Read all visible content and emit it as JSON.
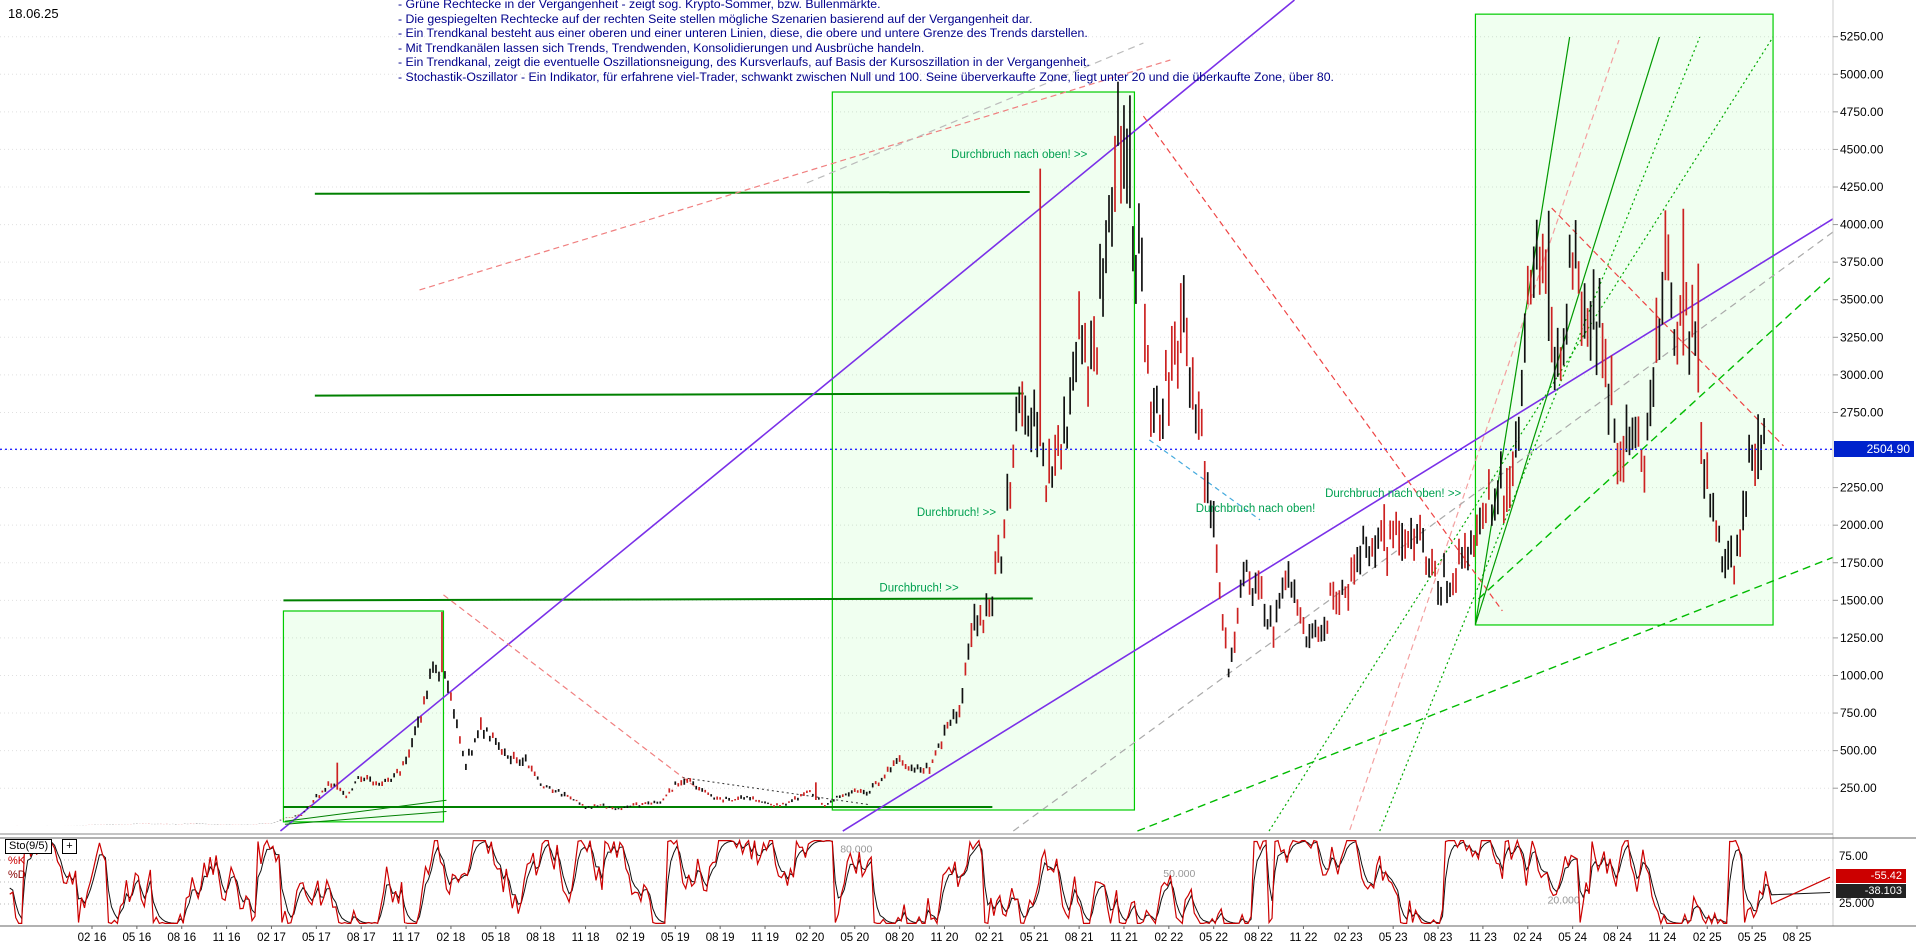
{
  "meta": {
    "date_label": "18.06.25"
  },
  "colors": {
    "annotation_text": "#00008b",
    "bull_rect_border": "#00cc00",
    "trend_violet": "#7a30e8",
    "trend_red": "#ee4444",
    "trend_green": "#00bb00",
    "current_price_line": "#2a2aff",
    "current_price_badge_bg": "#0022cc",
    "oscillator_k": "#cc0000",
    "oscillator_d": "#111111"
  },
  "annotations": {
    "lines": [
      "- Grüne Rechtecke in der Vergangenheit - zeigt sog. Krypto-Sommer, bzw. Bullenmärkte.",
      "- Die gespiegelten Rechtecke auf der rechten Seite stellen mögliche Szenarien basierend auf der Vergangenheit dar.",
      "- Ein Trendkanal besteht aus einer oberen und einer unteren Linien, diese, die obere und untere Grenze des Trends darstellen.",
      "- Mit Trendkanälen lassen sich Trends, Trendwenden, Konsolidierungen und Ausbrüche handeln.",
      "- Ein Trendkanal, zeigt die eventuelle Oszillationsneigung, des Kursverlaufs, auf Basis der Kursoszillation in der Vergangenheit.",
      "- Stochastik-Oszillator - Ein Indikator, für erfahrene viel-Trader, schwankt zwischen Null und 100. Seine überverkaufte Zone, liegt unter 20 und die überkaufte Zone, über 80."
    ]
  },
  "price_axis": {
    "ticks": [
      "5250.00",
      "5000.00",
      "4750.00",
      "4500.00",
      "4250.00",
      "4000.00",
      "3750.00",
      "3500.00",
      "3250.00",
      "3000.00",
      "2750.00",
      "2250.00",
      "2000.00",
      "1750.00",
      "1500.00",
      "1250.00",
      "1000.00",
      "750.00",
      "500.00",
      "250.00"
    ]
  },
  "current_price": {
    "value": "2504.90",
    "number": 2504.9
  },
  "x_axis": {
    "labels": [
      "02 16",
      "05 16",
      "08 16",
      "11 16",
      "02 17",
      "05 17",
      "08 17",
      "11 17",
      "02 18",
      "05 18",
      "08 18",
      "11 18",
      "02 19",
      "05 19",
      "08 19",
      "11 19",
      "02 20",
      "05 20",
      "08 20",
      "11 20",
      "02 21",
      "05 21",
      "08 21",
      "11 21",
      "02 22",
      "05 22",
      "08 22",
      "11 22",
      "02 23",
      "05 23",
      "08 23",
      "11 23",
      "02 24",
      "05 24",
      "08 24",
      "11 24",
      "02 25",
      "05 25",
      "08 25"
    ]
  },
  "oscillator": {
    "name": "Sto(9/5)",
    "plus_label": "+",
    "k_label": "%K",
    "d_label": "%D",
    "right_top_label": "75.00",
    "right_bottom_label": "25.000",
    "k_value": "-55.42",
    "d_value": "-38.103",
    "k_value_number": 55.42,
    "d_value_number": 38.103,
    "levels": [
      75,
      50,
      25
    ],
    "inline_labels": [
      {
        "text": "80.000",
        "m": 51.1,
        "v": 80
      },
      {
        "text": "50.000",
        "m": 72.7,
        "v": 52
      },
      {
        "text": "20.000",
        "m": 98.4,
        "v": 22
      }
    ]
  },
  "chart_data": {
    "type": "candlestick",
    "title": "",
    "x_unit": "month",
    "ylim": [
      -60,
      5400
    ],
    "y_tick_step": 250,
    "grid": "horizontal-dotted",
    "current_value": 2504.9,
    "series": [
      {
        "name": "price-monthly-approx",
        "points": [
          [
            "2015-09",
            1.3
          ],
          [
            "2015-10",
            0.6
          ],
          [
            "2015-11",
            0.9
          ],
          [
            "2015-12",
            0.9
          ],
          [
            "2016-01",
            2.3
          ],
          [
            "2016-02",
            6.2
          ],
          [
            "2016-03",
            11.2
          ],
          [
            "2016-04",
            8.8
          ],
          [
            "2016-05",
            12.5
          ],
          [
            "2016-06",
            12.1
          ],
          [
            "2016-07",
            11.6
          ],
          [
            "2016-08",
            11.2
          ],
          [
            "2016-09",
            13.1
          ],
          [
            "2016-10",
            10.9
          ],
          [
            "2016-11",
            9.6
          ],
          [
            "2016-12",
            8.2
          ],
          [
            "2017-01",
            10.7
          ],
          [
            "2017-02",
            15.4
          ],
          [
            "2017-03",
            49.8
          ],
          [
            "2017-04",
            70.3
          ],
          [
            "2017-05",
            190
          ],
          [
            "2017-06",
            283
          ],
          [
            "2017-07",
            203
          ],
          [
            "2017-08",
            330
          ],
          [
            "2017-09",
            290
          ],
          [
            "2017-10",
            303
          ],
          [
            "2017-11",
            427
          ],
          [
            "2017-12",
            720
          ],
          [
            "2018-01",
            1105
          ],
          [
            "2018-02",
            855
          ],
          [
            "2018-03",
            400
          ],
          [
            "2018-04",
            660
          ],
          [
            "2018-05",
            580
          ],
          [
            "2018-06",
            450
          ],
          [
            "2018-07",
            430
          ],
          [
            "2018-08",
            283
          ],
          [
            "2018-09",
            231
          ],
          [
            "2018-10",
            198
          ],
          [
            "2018-11",
            118
          ],
          [
            "2018-12",
            140
          ],
          [
            "2019-01",
            108
          ],
          [
            "2019-02",
            136
          ],
          [
            "2019-03",
            141
          ],
          [
            "2019-04",
            162
          ],
          [
            "2019-05",
            267
          ],
          [
            "2019-06",
            290
          ],
          [
            "2019-07",
            218
          ],
          [
            "2019-08",
            172
          ],
          [
            "2019-09",
            180
          ],
          [
            "2019-10",
            182
          ],
          [
            "2019-11",
            152
          ],
          [
            "2019-12",
            130
          ],
          [
            "2020-01",
            180
          ],
          [
            "2020-02",
            224
          ],
          [
            "2020-03",
            134
          ],
          [
            "2020-04",
            206
          ],
          [
            "2020-05",
            231
          ],
          [
            "2020-06",
            226
          ],
          [
            "2020-07",
            346
          ],
          [
            "2020-08",
            428
          ],
          [
            "2020-09",
            359
          ],
          [
            "2020-10",
            386
          ],
          [
            "2020-11",
            602
          ],
          [
            "2020-12",
            737
          ],
          [
            "2021-01",
            1312
          ],
          [
            "2021-02",
            1418
          ],
          [
            "2021-03",
            1919
          ],
          [
            "2021-04",
            2772
          ],
          [
            "2021-05",
            2707
          ],
          [
            "2021-06",
            2274
          ],
          [
            "2021-07",
            2531
          ],
          [
            "2021-08",
            3433
          ],
          [
            "2021-09",
            3001
          ],
          [
            "2021-10",
            4288
          ],
          [
            "2021-11",
            4631
          ],
          [
            "2021-12",
            3683
          ],
          [
            "2022-01",
            2688
          ],
          [
            "2022-02",
            2919
          ],
          [
            "2022-03",
            3281
          ],
          [
            "2022-04",
            2729
          ],
          [
            "2022-05",
            1942
          ],
          [
            "2022-06",
            1067
          ],
          [
            "2022-07",
            1681
          ],
          [
            "2022-08",
            1554
          ],
          [
            "2022-09",
            1328
          ],
          [
            "2022-10",
            1572
          ],
          [
            "2022-11",
            1294
          ],
          [
            "2022-12",
            1196
          ],
          [
            "2023-01",
            1586
          ],
          [
            "2023-02",
            1606
          ],
          [
            "2023-03",
            1822
          ],
          [
            "2023-04",
            1871
          ],
          [
            "2023-05",
            1874
          ],
          [
            "2023-06",
            1934
          ],
          [
            "2023-07",
            1856
          ],
          [
            "2023-08",
            1652
          ],
          [
            "2023-09",
            1671
          ],
          [
            "2023-10",
            1812
          ],
          [
            "2023-11",
            2052
          ],
          [
            "2023-12",
            2281
          ],
          [
            "2024-01",
            2283
          ],
          [
            "2024-02",
            3385
          ],
          [
            "2024-03",
            3647
          ],
          [
            "2024-04",
            3014
          ],
          [
            "2024-05",
            3762
          ],
          [
            "2024-06",
            3438
          ],
          [
            "2024-07",
            3232
          ],
          [
            "2024-08",
            2513
          ],
          [
            "2024-09",
            2602
          ],
          [
            "2024-10",
            2512
          ],
          [
            "2024-11",
            3703
          ],
          [
            "2024-12",
            3336
          ],
          [
            "2025-01",
            3300
          ],
          [
            "2025-02",
            2237
          ],
          [
            "2025-03",
            1823
          ],
          [
            "2025-04",
            1794
          ],
          [
            "2025-05",
            2529
          ],
          [
            "2025-06",
            2505
          ]
        ]
      }
    ],
    "monthly_high_overrides": {
      "2017-06": 420,
      "2017-12": 760,
      "2018-01": 1423,
      "2020-02": 289,
      "2021-05": 4372,
      "2021-11": 4860,
      "2023-04": 2140,
      "2024-03": 4092,
      "2024-12": 4105,
      "2025-01": 3740,
      "2025-05": 2738
    },
    "overlays": {
      "rectangles": [
        {
          "id": "bull-market-2017",
          "m1": 12.8,
          "p1": 26,
          "m2": 23.5,
          "p2": 1429
        },
        {
          "id": "bull-market-2020-21",
          "m1": 49.5,
          "p1": 105,
          "m2": 69.7,
          "p2": 4882
        },
        {
          "id": "mirrored-scenario-right",
          "m1": 92.5,
          "p1": 1336,
          "m2": 112.4,
          "p2": 5400
        }
      ],
      "trend_lines": [
        {
          "id": "support-125",
          "m1": 12.8,
          "p1": 125,
          "m2": 60.2,
          "p2": 125,
          "color": "#008000",
          "w": 2,
          "dash": ""
        },
        {
          "id": "resistance-1500",
          "m1": 12.8,
          "p1": 1500,
          "m2": 62.9,
          "p2": 1512,
          "color": "#008000",
          "w": 2,
          "dash": ""
        },
        {
          "id": "resistance-2870",
          "m1": 14.9,
          "p1": 2862,
          "m2": 62.3,
          "p2": 2876,
          "color": "#008000",
          "w": 2,
          "dash": ""
        },
        {
          "id": "resistance-4200",
          "m1": 14.9,
          "p1": 4205,
          "m2": 62.7,
          "p2": 4217,
          "color": "#008000",
          "w": 2,
          "dash": ""
        },
        {
          "id": "violet-channel-1",
          "m1": 12.6,
          "p1": -35,
          "m2": 80.4,
          "p2": 5494,
          "color": "#7a30e8",
          "w": 1.6,
          "dash": ""
        },
        {
          "id": "violet-channel-2",
          "m1": 50.2,
          "p1": -35,
          "m2": 121.9,
          "p2": 4376,
          "color": "#7a30e8",
          "w": 1.6,
          "dash": ""
        },
        {
          "id": "red-downtrend-2018",
          "m1": 23.5,
          "p1": 1536,
          "m2": 40.6,
          "p2": 239,
          "color": "#f08080",
          "w": 1.2,
          "dash": "6 4"
        },
        {
          "id": "red-projection-upper",
          "m1": 21.9,
          "p1": 3565,
          "m2": 72.1,
          "p2": 5095,
          "color": "#f08080",
          "w": 1.2,
          "dash": "6 4"
        },
        {
          "id": "red-downtrend-ath",
          "m1": 70.3,
          "p1": 4722,
          "m2": 94.3,
          "p2": 1430,
          "color": "#ee4444",
          "w": 1.2,
          "dash": "6 4"
        },
        {
          "id": "red-downtrend-2024",
          "m1": 97.6,
          "p1": 4110,
          "m2": 113.1,
          "p2": 2527,
          "color": "#ee4444",
          "w": 1.2,
          "dash": "6 4"
        },
        {
          "id": "red-scenario-steep",
          "m1": 84.1,
          "p1": -28,
          "m2": 102.1,
          "p2": 5228,
          "color": "#f4a0a0",
          "w": 1.2,
          "dash": "6 4"
        },
        {
          "id": "green-uptrend-long",
          "m1": 69.9,
          "p1": -35,
          "m2": 121.9,
          "p2": 2001,
          "color": "#00bb00",
          "w": 1.4,
          "dash": "8 5"
        },
        {
          "id": "green-uptrend-2023",
          "m1": 92.7,
          "p1": 1509,
          "m2": 121.9,
          "p2": 4164,
          "color": "#00bb00",
          "w": 1.4,
          "dash": "8 5"
        },
        {
          "id": "green-scenario-dot-1",
          "m1": 78.7,
          "p1": -35,
          "m2": 112.4,
          "p2": 5248,
          "color": "#00aa00",
          "w": 1.2,
          "dash": "2 3"
        },
        {
          "id": "green-scenario-dot-2",
          "m1": 86.1,
          "p1": -35,
          "m2": 107.5,
          "p2": 5248,
          "color": "#00aa00",
          "w": 1.2,
          "dash": "2 3"
        },
        {
          "id": "green-fan-1",
          "m1": 92.5,
          "p1": 1340,
          "m2": 104.8,
          "p2": 5248,
          "color": "#009900",
          "w": 1.2,
          "dash": ""
        },
        {
          "id": "green-fan-2",
          "m1": 92.5,
          "p1": 1340,
          "m2": 98.8,
          "p2": 5248,
          "color": "#009900",
          "w": 1.2,
          "dash": ""
        },
        {
          "id": "gray-uptrend",
          "m1": 61.6,
          "p1": -35,
          "m2": 116.4,
          "p2": 3950,
          "color": "#aaaaaa",
          "w": 1.2,
          "dash": "7 5"
        },
        {
          "id": "gray-top",
          "m1": 47.8,
          "p1": 4277,
          "m2": 70.3,
          "p2": 5208,
          "color": "#bbbbbb",
          "w": 1.2,
          "dash": "7 5"
        },
        {
          "id": "cyan-dash-2022",
          "m1": 70.7,
          "p1": 2567,
          "m2": 78.1,
          "p2": 2035,
          "color": "#44aadd",
          "w": 1.2,
          "dash": "5 4"
        },
        {
          "id": "mini-uptrend-1",
          "m1": 12.9,
          "p1": 30,
          "m2": 23.7,
          "p2": 170,
          "color": "#008000",
          "w": 1,
          "dash": ""
        },
        {
          "id": "mini-uptrend-2",
          "m1": 12.9,
          "p1": 10,
          "m2": 23.7,
          "p2": 95,
          "color": "#008000",
          "w": 1,
          "dash": ""
        },
        {
          "id": "dotted-2019-downtrend",
          "m1": 39.5,
          "p1": 320,
          "m2": 52,
          "p2": 140,
          "color": "#333333",
          "w": 1,
          "dash": "2 3"
        }
      ],
      "labels": [
        {
          "text": "Durchbruch nach oben! >>",
          "m": 62.0,
          "p": 4443,
          "color": "#00a050"
        },
        {
          "text": "Durchbruch! >>",
          "m": 57.8,
          "p": 2061,
          "color": "#00a050"
        },
        {
          "text": "Durchbruch! >>",
          "m": 55.3,
          "p": 1560,
          "color": "#00a050"
        },
        {
          "text": "Durchbruch nach oben!",
          "m": 77.8,
          "p": 2088,
          "color": "#00a050"
        },
        {
          "text": "Durchbruch nach oben! >>",
          "m": 87.0,
          "p": 2188,
          "color": "#00a050"
        }
      ]
    },
    "stochastic": {
      "type": "line",
      "k_display": "-55.42",
      "d_display": "-38.103",
      "range": [
        0,
        100
      ],
      "levels_shown": [
        75,
        50,
        25
      ],
      "zone_labels": [
        "80.000",
        "50.000",
        "20.000"
      ]
    }
  }
}
